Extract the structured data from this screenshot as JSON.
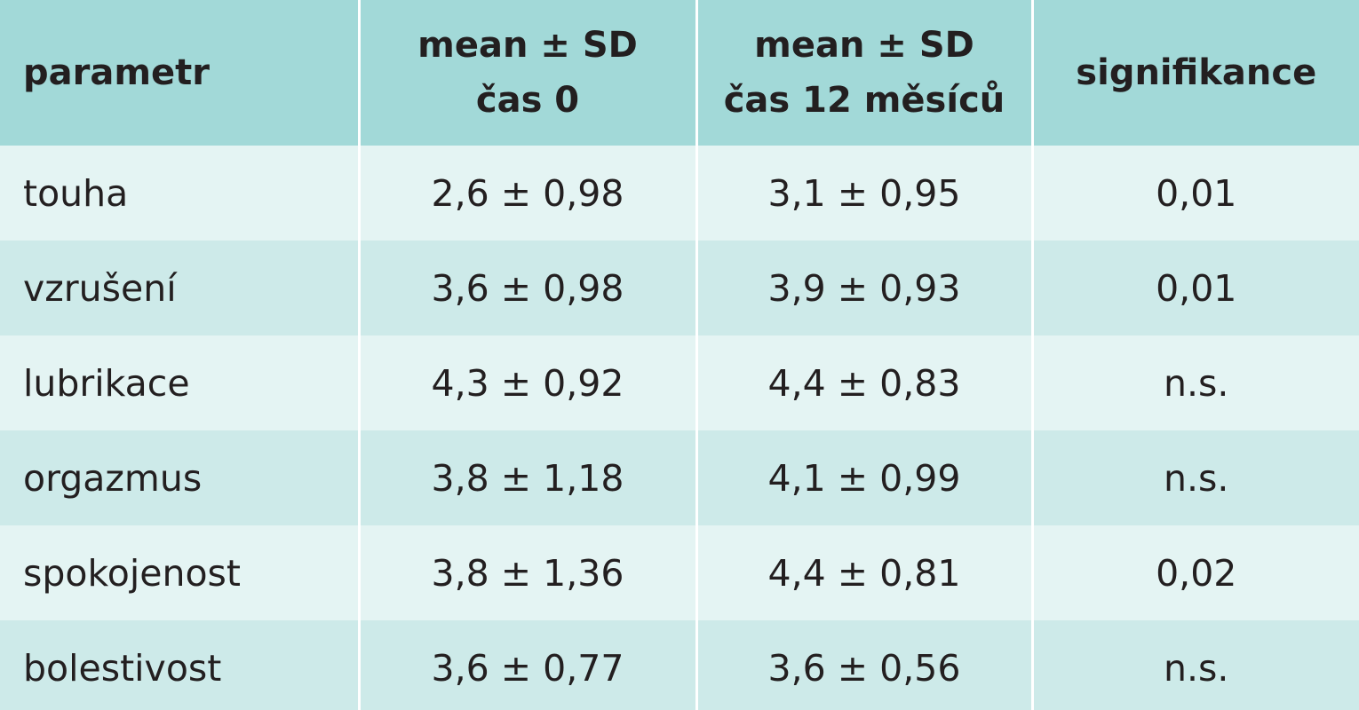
{
  "table": {
    "headers": [
      {
        "lines": [
          "parametr"
        ]
      },
      {
        "lines": [
          "mean ± SD",
          "čas 0"
        ]
      },
      {
        "lines": [
          "mean ± SD",
          "čas 12 měsíců"
        ]
      },
      {
        "lines": [
          "signifikance"
        ]
      }
    ],
    "rows": [
      [
        "touha",
        "2,6 ± 0,98",
        "3,1 ± 0,95",
        "0,01"
      ],
      [
        "vzrušení",
        "3,6 ± 0,98",
        "3,9 ± 0,93",
        "0,01"
      ],
      [
        "lubrikace",
        "4,3 ± 0,92",
        "4,4 ± 0,83",
        "n.s."
      ],
      [
        "orgazmus",
        "3,8 ± 1,18",
        "4,1 ± 0,99",
        "n.s."
      ],
      [
        "spokojenost",
        "3,8 ± 1,36",
        "4,4 ± 0,81",
        "0,02"
      ],
      [
        "bolestivost",
        "3,6 ± 0,77",
        "3,6 ± 0,56",
        "n.s."
      ]
    ]
  },
  "colors": {
    "header_bg": "#a2d9d8",
    "row_light": "#e4f4f3",
    "row_dark": "#cdeae9",
    "text": "#231f20"
  }
}
